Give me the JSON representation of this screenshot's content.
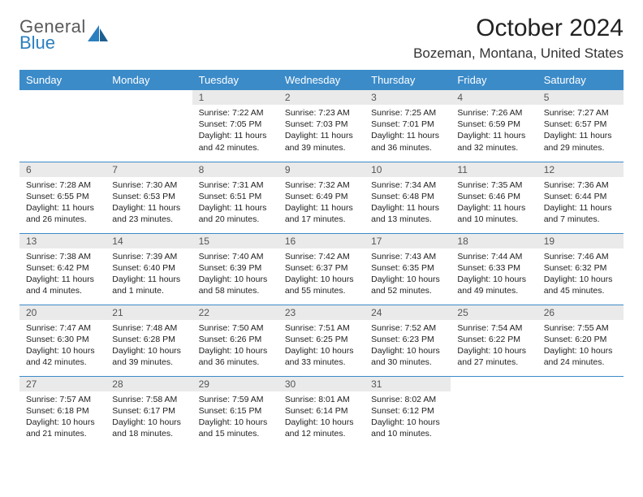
{
  "brand": {
    "line1": "General",
    "line2": "Blue"
  },
  "title": "October 2024",
  "location": "Bozeman, Montana, United States",
  "colors": {
    "header_bg": "#3b8bc9",
    "header_fg": "#ffffff",
    "daynum_bg": "#eaeaea",
    "row_border": "#3b8bc9",
    "brand_gray": "#5a5a5a",
    "brand_blue": "#2a7fbf"
  },
  "day_headers": [
    "Sunday",
    "Monday",
    "Tuesday",
    "Wednesday",
    "Thursday",
    "Friday",
    "Saturday"
  ],
  "weeks": [
    [
      null,
      null,
      {
        "n": "1",
        "sr": "7:22 AM",
        "ss": "7:05 PM",
        "dl": "11 hours and 42 minutes."
      },
      {
        "n": "2",
        "sr": "7:23 AM",
        "ss": "7:03 PM",
        "dl": "11 hours and 39 minutes."
      },
      {
        "n": "3",
        "sr": "7:25 AM",
        "ss": "7:01 PM",
        "dl": "11 hours and 36 minutes."
      },
      {
        "n": "4",
        "sr": "7:26 AM",
        "ss": "6:59 PM",
        "dl": "11 hours and 32 minutes."
      },
      {
        "n": "5",
        "sr": "7:27 AM",
        "ss": "6:57 PM",
        "dl": "11 hours and 29 minutes."
      }
    ],
    [
      {
        "n": "6",
        "sr": "7:28 AM",
        "ss": "6:55 PM",
        "dl": "11 hours and 26 minutes."
      },
      {
        "n": "7",
        "sr": "7:30 AM",
        "ss": "6:53 PM",
        "dl": "11 hours and 23 minutes."
      },
      {
        "n": "8",
        "sr": "7:31 AM",
        "ss": "6:51 PM",
        "dl": "11 hours and 20 minutes."
      },
      {
        "n": "9",
        "sr": "7:32 AM",
        "ss": "6:49 PM",
        "dl": "11 hours and 17 minutes."
      },
      {
        "n": "10",
        "sr": "7:34 AM",
        "ss": "6:48 PM",
        "dl": "11 hours and 13 minutes."
      },
      {
        "n": "11",
        "sr": "7:35 AM",
        "ss": "6:46 PM",
        "dl": "11 hours and 10 minutes."
      },
      {
        "n": "12",
        "sr": "7:36 AM",
        "ss": "6:44 PM",
        "dl": "11 hours and 7 minutes."
      }
    ],
    [
      {
        "n": "13",
        "sr": "7:38 AM",
        "ss": "6:42 PM",
        "dl": "11 hours and 4 minutes."
      },
      {
        "n": "14",
        "sr": "7:39 AM",
        "ss": "6:40 PM",
        "dl": "11 hours and 1 minute."
      },
      {
        "n": "15",
        "sr": "7:40 AM",
        "ss": "6:39 PM",
        "dl": "10 hours and 58 minutes."
      },
      {
        "n": "16",
        "sr": "7:42 AM",
        "ss": "6:37 PM",
        "dl": "10 hours and 55 minutes."
      },
      {
        "n": "17",
        "sr": "7:43 AM",
        "ss": "6:35 PM",
        "dl": "10 hours and 52 minutes."
      },
      {
        "n": "18",
        "sr": "7:44 AM",
        "ss": "6:33 PM",
        "dl": "10 hours and 49 minutes."
      },
      {
        "n": "19",
        "sr": "7:46 AM",
        "ss": "6:32 PM",
        "dl": "10 hours and 45 minutes."
      }
    ],
    [
      {
        "n": "20",
        "sr": "7:47 AM",
        "ss": "6:30 PM",
        "dl": "10 hours and 42 minutes."
      },
      {
        "n": "21",
        "sr": "7:48 AM",
        "ss": "6:28 PM",
        "dl": "10 hours and 39 minutes."
      },
      {
        "n": "22",
        "sr": "7:50 AM",
        "ss": "6:26 PM",
        "dl": "10 hours and 36 minutes."
      },
      {
        "n": "23",
        "sr": "7:51 AM",
        "ss": "6:25 PM",
        "dl": "10 hours and 33 minutes."
      },
      {
        "n": "24",
        "sr": "7:52 AM",
        "ss": "6:23 PM",
        "dl": "10 hours and 30 minutes."
      },
      {
        "n": "25",
        "sr": "7:54 AM",
        "ss": "6:22 PM",
        "dl": "10 hours and 27 minutes."
      },
      {
        "n": "26",
        "sr": "7:55 AM",
        "ss": "6:20 PM",
        "dl": "10 hours and 24 minutes."
      }
    ],
    [
      {
        "n": "27",
        "sr": "7:57 AM",
        "ss": "6:18 PM",
        "dl": "10 hours and 21 minutes."
      },
      {
        "n": "28",
        "sr": "7:58 AM",
        "ss": "6:17 PM",
        "dl": "10 hours and 18 minutes."
      },
      {
        "n": "29",
        "sr": "7:59 AM",
        "ss": "6:15 PM",
        "dl": "10 hours and 15 minutes."
      },
      {
        "n": "30",
        "sr": "8:01 AM",
        "ss": "6:14 PM",
        "dl": "10 hours and 12 minutes."
      },
      {
        "n": "31",
        "sr": "8:02 AM",
        "ss": "6:12 PM",
        "dl": "10 hours and 10 minutes."
      },
      null,
      null
    ]
  ],
  "labels": {
    "sunrise": "Sunrise:",
    "sunset": "Sunset:",
    "daylight": "Daylight:"
  }
}
